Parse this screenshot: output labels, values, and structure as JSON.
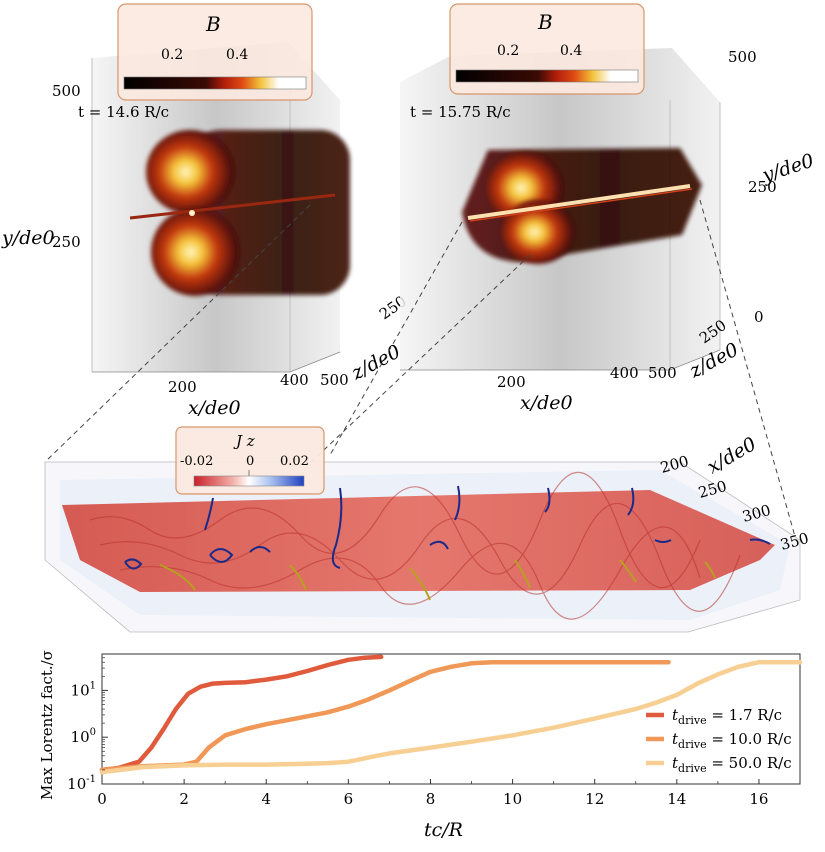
{
  "panel_left": {
    "colorbar_title": "B",
    "colorbar_ticks": [
      "0.2",
      "0.4"
    ],
    "time_label": "t = 14.6 R/c",
    "y_ticks": [
      "500",
      "250"
    ],
    "ylabel": "y/de0",
    "x_ticks": [
      "200",
      "400"
    ],
    "xlabel": "x/de0",
    "z_ticks": [
      "250",
      "500"
    ],
    "zlabel": "z/de0"
  },
  "panel_right": {
    "colorbar_title": "B",
    "colorbar_ticks": [
      "0.2",
      "0.4"
    ],
    "time_label": "t = 15.75 R/c",
    "y_ticks": [
      "500",
      "250",
      "0"
    ],
    "ylabel": "y/de0",
    "x_ticks": [
      "200",
      "400"
    ],
    "xlabel": "x/de0",
    "z_ticks": [
      "250",
      "500"
    ],
    "zlabel": "z/de0"
  },
  "panel_zoom": {
    "colorbar_title": "J z",
    "colorbar_ticks": [
      "-0.02",
      "0",
      "0.02"
    ],
    "x_ticks": [
      "200",
      "250",
      "300",
      "350"
    ],
    "xlabel": "x/de0"
  },
  "colors": {
    "B_colormap": [
      "#000000",
      "#3a0a04",
      "#8a1a08",
      "#d23a10",
      "#f0b020",
      "#ffffff"
    ],
    "Jz_colormap": [
      "#c8202a",
      "#f4b0a8",
      "#ffffff",
      "#a8c0f0",
      "#2040c0"
    ],
    "drive_1_7": "#e05a3c",
    "drive_10": "#f09858",
    "drive_50": "#f8cf92"
  },
  "chart_data": {
    "type": "line",
    "xlabel": "tc/R",
    "ylabel": "Max Lorentz fact./σ",
    "xlim": [
      0,
      17
    ],
    "ylim": [
      0.1,
      60
    ],
    "yscale": "log",
    "x_ticks": [
      "0",
      "2",
      "4",
      "6",
      "8",
      "10",
      "12",
      "14",
      "16"
    ],
    "y_ticks": [
      "10^-1",
      "10^0",
      "10^1"
    ],
    "legend": "bottom-right",
    "series": [
      {
        "name": "t_drive = 1.7 R/c",
        "legend_main": "t",
        "legend_sub": "drive",
        "legend_rest": " = 1.7 R/c",
        "color": "#e05a3c",
        "x": [
          0,
          0.4,
          0.9,
          1.2,
          1.5,
          1.8,
          2.1,
          2.4,
          2.7,
          3.0,
          3.5,
          4.0,
          4.5,
          5.0,
          5.5,
          6.0,
          6.4,
          6.8
        ],
        "y": [
          0.2,
          0.22,
          0.3,
          0.6,
          1.5,
          4.0,
          8.5,
          12,
          14,
          14.5,
          15,
          17,
          20,
          26,
          35,
          45,
          50,
          52
        ]
      },
      {
        "name": "t_drive = 10.0 R/c",
        "legend_main": "t",
        "legend_sub": "drive",
        "legend_rest": " = 10.0 R/c",
        "color": "#f09858",
        "x": [
          0,
          1.0,
          2.0,
          2.3,
          2.6,
          3.0,
          3.5,
          4.0,
          4.5,
          5.0,
          5.5,
          6.0,
          6.5,
          7.0,
          7.5,
          8.0,
          8.5,
          9.0,
          9.5,
          10.0,
          12.0,
          13.8
        ],
        "y": [
          0.2,
          0.24,
          0.26,
          0.3,
          0.6,
          1.1,
          1.5,
          1.9,
          2.3,
          2.8,
          3.4,
          4.5,
          6.5,
          10,
          16,
          25,
          32,
          38,
          40,
          40,
          40,
          40
        ]
      },
      {
        "name": "t_drive = 50.0 R/c",
        "legend_main": "t",
        "legend_sub": "drive",
        "legend_rest": " = 50.0 R/c",
        "color": "#f8cf92",
        "x": [
          0,
          1.0,
          2.0,
          3.0,
          4.0,
          5.0,
          5.5,
          6.0,
          6.5,
          7.0,
          8.0,
          9.0,
          10.0,
          11.0,
          12.0,
          13.0,
          13.5,
          14.0,
          14.5,
          15.0,
          15.5,
          16.0,
          17.0
        ],
        "y": [
          0.18,
          0.23,
          0.25,
          0.26,
          0.26,
          0.27,
          0.28,
          0.3,
          0.37,
          0.45,
          0.6,
          0.8,
          1.1,
          1.6,
          2.5,
          4.0,
          5.5,
          8.0,
          14,
          22,
          32,
          40,
          40
        ]
      }
    ]
  }
}
